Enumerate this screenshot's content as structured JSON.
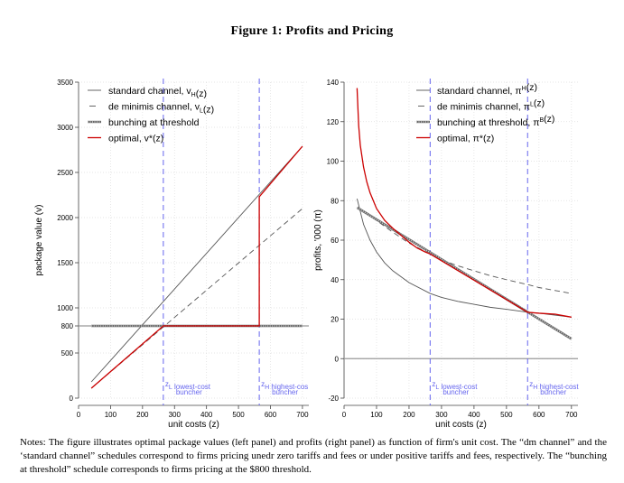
{
  "figure": {
    "title": "Figure 1: Profits and Pricing",
    "notes": "Notes: The figure illustrates optimal package values (left panel) and profits (right panel) as function of firm's unit cost. The “dm channel” and the ‘standard channel” schedules correspond to firms pricing unedr zero tariffs and fees or under positive tariffs and fees, respectively. The “bunching at threshold” schedule corresponds to firms pricing at the $800 threshold."
  },
  "chart_data": [
    {
      "type": "line",
      "ylabel": "package value (v)",
      "xlabel": "unit costs (z)",
      "xlim": [
        0,
        720
      ],
      "ylim": [
        0,
        3500
      ],
      "xticks": [
        0,
        100,
        200,
        300,
        400,
        500,
        600,
        700
      ],
      "yticks": [
        0,
        500,
        800,
        1000,
        1500,
        2000,
        2500,
        3000,
        3500
      ],
      "legend": [
        "standard channel, v_H(z)",
        "de minimis channel, v_L(z)",
        "bunching at threshold",
        "optimal, v*(z)"
      ],
      "colors": {
        "standard": "#555555",
        "deminimis": "#555555",
        "bunching": "#666666",
        "optimal": "#cc0000",
        "vline": "#6666ee",
        "hline": "#999999"
      },
      "series": [
        {
          "name": "standard channel, v_H(z)",
          "style": "solid",
          "x": [
            40,
            700
          ],
          "y": [
            180,
            2790
          ]
        },
        {
          "name": "de minimis channel, v_L(z)",
          "style": "dashed",
          "x": [
            40,
            700
          ],
          "y": [
            110,
            2100
          ]
        },
        {
          "name": "bunching at threshold",
          "style": "marked",
          "x": [
            40,
            700
          ],
          "y": [
            800,
            800
          ]
        },
        {
          "name": "optimal, v*(z)",
          "style": "solid",
          "x": [
            40,
            265,
            265,
            565,
            565,
            700
          ],
          "y": [
            110,
            800,
            800,
            800,
            2230,
            2790
          ]
        }
      ],
      "hline": 800,
      "vlines": [
        265,
        565
      ],
      "annotations": [
        {
          "text1": "z_L lowest-cost",
          "text2": "buncher",
          "x": 265
        },
        {
          "text1": "z_H highest-cos",
          "text2": "buncher",
          "x": 565
        }
      ]
    },
    {
      "type": "line",
      "ylabel": "profits, '000 (π)",
      "xlabel": "unit costs (z)",
      "xlim": [
        0,
        720
      ],
      "ylim": [
        -20,
        140
      ],
      "xticks": [
        0,
        100,
        200,
        300,
        400,
        500,
        600,
        700
      ],
      "yticks": [
        -20,
        0,
        20,
        40,
        60,
        80,
        100,
        120,
        140
      ],
      "legend": [
        "standard channel, π^H(z)",
        "de minimis channel, π^L(z)",
        "bunching at threshold, π^B(z)",
        "optimal, π*(z)"
      ],
      "colors": {
        "standard": "#555555",
        "deminimis": "#555555",
        "bunching": "#666666",
        "optimal": "#cc0000",
        "vline": "#6666ee",
        "hline": "#999999"
      },
      "series": [
        {
          "name": "standard channel, π^H(z)",
          "style": "solid",
          "x": [
            40,
            60,
            80,
            100,
            125,
            150,
            200,
            265,
            300,
            350,
            400,
            450,
            500,
            565,
            600,
            700
          ],
          "y": [
            81,
            68,
            60,
            54,
            48.5,
            44.5,
            38.5,
            33,
            31,
            29,
            27.5,
            26,
            25,
            23.5,
            23,
            21
          ]
        },
        {
          "name": "de minimis channel, π^L(z)",
          "style": "dashed",
          "x": [
            40,
            100,
            150,
            200,
            265,
            300,
            350,
            400,
            450,
            500,
            565,
            600,
            650,
            700
          ],
          "y": [
            76.5,
            70,
            64,
            58.5,
            53,
            50,
            47,
            44.5,
            42,
            40,
            37.5,
            36,
            34.5,
            33
          ]
        },
        {
          "name": "bunching at threshold, π^B(z)",
          "style": "marked",
          "x": [
            40,
            700
          ],
          "y": [
            76.5,
            10
          ]
        },
        {
          "name": "optimal, π*(z)",
          "style": "solid",
          "x": [
            40,
            45,
            50,
            60,
            70,
            80,
            100,
            125,
            150,
            175,
            200,
            225,
            250,
            265,
            565,
            600,
            650,
            700
          ],
          "y": [
            137,
            118,
            108,
            97,
            89.5,
            84,
            76,
            70,
            66,
            62.5,
            59,
            56,
            54,
            53,
            23.5,
            23,
            22.5,
            21
          ]
        }
      ],
      "hline": 0,
      "vlines": [
        265,
        565
      ],
      "annotations": [
        {
          "text1": "z_L lowest-cost",
          "text2": "buncher",
          "x": 265
        },
        {
          "text1": "z_H highest-cost",
          "text2": "buncher",
          "x": 565
        }
      ]
    }
  ]
}
